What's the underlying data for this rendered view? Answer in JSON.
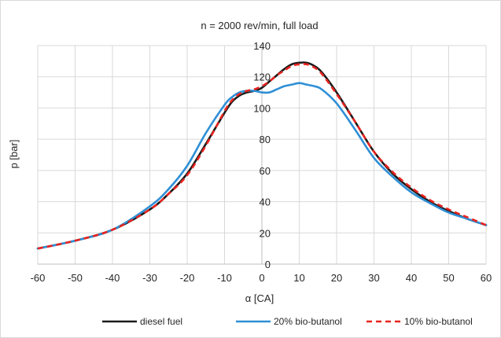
{
  "chart_data": {
    "type": "line",
    "title": "n = 2000 rev/min, full load",
    "xlabel": "α [CA]",
    "ylabel": "p [bar]",
    "xlim": [
      -60,
      60
    ],
    "ylim": [
      0,
      140
    ],
    "x_ticks": [
      "-60",
      "-50",
      "-40",
      "-30",
      "-20",
      "-10",
      "0",
      "10",
      "20",
      "30",
      "40",
      "50",
      "60"
    ],
    "y_ticks": [
      "0",
      "20",
      "40",
      "60",
      "80",
      "100",
      "120",
      "140"
    ],
    "grid": true,
    "legend_position": "bottom",
    "series": [
      {
        "name": "diesel fuel",
        "color": "#1a1a1a",
        "style": "solid",
        "x": [
          -60,
          -50,
          -40,
          -30,
          -25,
          -20,
          -15,
          -10,
          -8,
          -6,
          -4,
          -2,
          0,
          2,
          4,
          6,
          8,
          10,
          12,
          14,
          16,
          20,
          25,
          30,
          35,
          40,
          45,
          50,
          55,
          60
        ],
        "y": [
          10,
          15,
          22,
          35,
          45,
          58,
          77,
          97,
          104,
          108,
          110,
          111,
          113,
          117,
          121,
          125,
          128,
          129,
          129,
          127,
          123,
          110,
          91,
          72,
          58,
          48,
          40,
          34,
          29,
          25
        ]
      },
      {
        "name": "20% bio-butanol",
        "color": "#2f8fd6",
        "style": "solid",
        "x": [
          -60,
          -50,
          -40,
          -30,
          -25,
          -20,
          -15,
          -10,
          -8,
          -6,
          -4,
          -2,
          0,
          2,
          4,
          6,
          8,
          10,
          12,
          14,
          16,
          20,
          25,
          30,
          35,
          40,
          45,
          50,
          55,
          60
        ],
        "y": [
          10,
          15,
          22,
          37,
          48,
          63,
          84,
          102,
          107,
          110,
          111,
          111,
          110,
          110,
          112,
          114,
          115,
          116,
          115,
          114,
          112,
          103,
          86,
          68,
          56,
          46,
          39,
          33,
          29,
          25
        ]
      },
      {
        "name": "10% bio-butanol",
        "color": "#e8231e",
        "style": "dashed",
        "x": [
          -60,
          -50,
          -40,
          -30,
          -25,
          -20,
          -15,
          -10,
          -8,
          -6,
          -4,
          -2,
          0,
          2,
          4,
          6,
          8,
          10,
          12,
          14,
          16,
          20,
          25,
          30,
          35,
          40,
          45,
          50,
          55,
          60
        ],
        "y": [
          10,
          15,
          22,
          35,
          45,
          57,
          76,
          98,
          105,
          109,
          111,
          112,
          114,
          117,
          121,
          124,
          127,
          128,
          128,
          126,
          122,
          109,
          91,
          72,
          59,
          49,
          41,
          35,
          30,
          25
        ]
      }
    ]
  }
}
